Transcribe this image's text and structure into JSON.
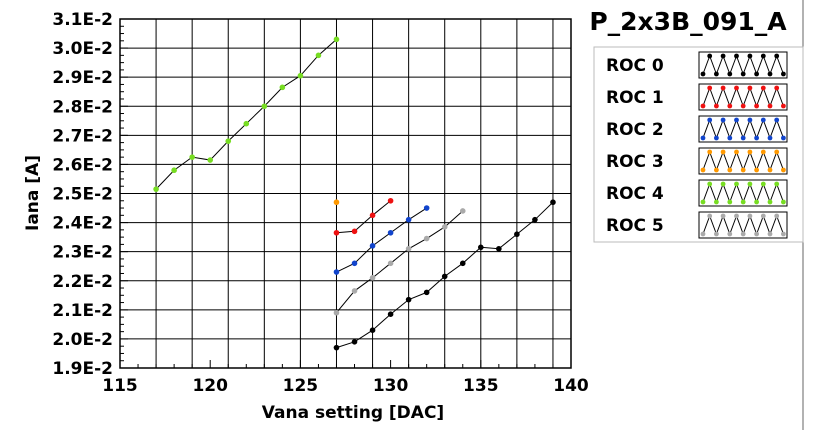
{
  "chart_data": {
    "type": "line",
    "title": "P_2x3B_091_A",
    "xlabel": "Vana setting [DAC]",
    "ylabel": "Iana [A]",
    "xlim": [
      115,
      140
    ],
    "ylim": [
      0.019,
      0.031
    ],
    "x_ticks": [
      115,
      120,
      125,
      130,
      135,
      140
    ],
    "x_tick_labels": [
      "115",
      "120",
      "125",
      "130",
      "135",
      "140"
    ],
    "y_ticks": [
      0.019,
      0.02,
      0.021,
      0.022,
      0.023,
      0.024,
      0.025,
      0.026,
      0.027,
      0.028,
      0.029,
      0.03,
      0.031
    ],
    "y_tick_labels": [
      "1.9E-2",
      "2.0E-2",
      "2.1E-2",
      "2.2E-2",
      "2.3E-2",
      "2.4E-2",
      "2.5E-2",
      "2.6E-2",
      "2.7E-2",
      "2.8E-2",
      "2.9E-2",
      "3.0E-2",
      "3.1E-2"
    ],
    "grid": true,
    "legend_position": "right",
    "series": [
      {
        "name": "ROC 0",
        "color": "#000000",
        "x": [
          127,
          128,
          129,
          130,
          131,
          132,
          133,
          134,
          135,
          136,
          137,
          138,
          139
        ],
        "y": [
          0.0197,
          0.0199,
          0.0203,
          0.02085,
          0.02135,
          0.0216,
          0.02215,
          0.0226,
          0.02315,
          0.0231,
          0.0236,
          0.0241,
          0.0247
        ]
      },
      {
        "name": "ROC 1",
        "color": "#ee1111",
        "x": [
          127,
          128,
          129,
          130
        ],
        "y": [
          0.02365,
          0.0237,
          0.02425,
          0.02475
        ]
      },
      {
        "name": "ROC 2",
        "color": "#1144cc",
        "x": [
          127,
          128,
          129,
          130,
          131,
          132
        ],
        "y": [
          0.0223,
          0.0226,
          0.0232,
          0.02365,
          0.0241,
          0.0245
        ]
      },
      {
        "name": "ROC 3",
        "color": "#ff9900",
        "x": [
          127
        ],
        "y": [
          0.0247
        ]
      },
      {
        "name": "ROC 4",
        "color": "#77dd22",
        "x": [
          117,
          118,
          119,
          120,
          121,
          122,
          123,
          124,
          125,
          126,
          127
        ],
        "y": [
          0.02515,
          0.0258,
          0.02625,
          0.02615,
          0.0268,
          0.0274,
          0.028,
          0.02865,
          0.02905,
          0.02975,
          0.0303
        ]
      },
      {
        "name": "ROC 5",
        "color": "#aaaaaa",
        "x": [
          127,
          128,
          129,
          130,
          131,
          132,
          133,
          134
        ],
        "y": [
          0.0209,
          0.02165,
          0.0221,
          0.0226,
          0.0231,
          0.02345,
          0.02385,
          0.0244
        ]
      }
    ]
  }
}
